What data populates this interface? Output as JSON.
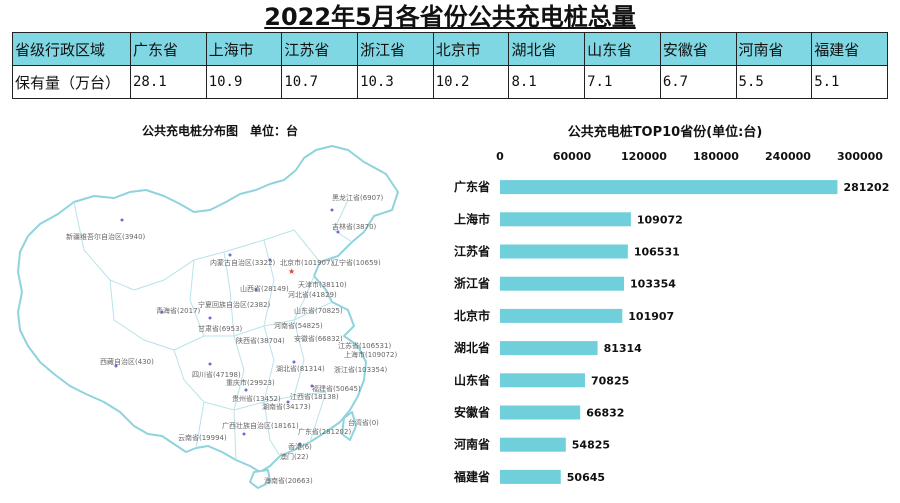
{
  "page": {
    "title": "2022年5月各省份公共充电桩总量"
  },
  "table": {
    "header_label": "省级行政区域",
    "value_label": "保有量（万台）",
    "provinces": [
      "广东省",
      "上海市",
      "江苏省",
      "浙江省",
      "北京市",
      "湖北省",
      "山东省",
      "安徽省",
      "河南省",
      "福建省"
    ],
    "values": [
      "28.1",
      "10.9",
      "10.7",
      "10.3",
      "10.2",
      "8.1",
      "7.1",
      "6.7",
      "5.5",
      "5.1"
    ]
  },
  "map": {
    "title": "公共充电桩分布图　单位：台",
    "labels": [
      {
        "text": "黑龙江省(6907)"
      },
      {
        "text": "吉林省(3870)"
      },
      {
        "text": "新疆维吾尔自治区(3940)"
      },
      {
        "text": "内蒙古自治区(3322)"
      },
      {
        "text": "北京市(101907)"
      },
      {
        "text": "辽宁省(10659)"
      },
      {
        "text": "天津市(38110)"
      },
      {
        "text": "河北省(41829)"
      },
      {
        "text": "山西省(28149)"
      },
      {
        "text": "宁夏回族自治区(2382)"
      },
      {
        "text": "青海省(2017)"
      },
      {
        "text": "甘肃省(6953)"
      },
      {
        "text": "山东省(70825)"
      },
      {
        "text": "河南省(54825)"
      },
      {
        "text": "陕西省(38704)"
      },
      {
        "text": "安徽省(66832)"
      },
      {
        "text": "江苏省(106531)"
      },
      {
        "text": "上海市(109072)"
      },
      {
        "text": "西藏自治区(430)"
      },
      {
        "text": "湖北省(81314)"
      },
      {
        "text": "浙江省(103354)"
      },
      {
        "text": "四川省(47198)"
      },
      {
        "text": "重庆市(29923)"
      },
      {
        "text": "福建省(50645)"
      },
      {
        "text": "贵州省(13452)"
      },
      {
        "text": "江西省(18138)"
      },
      {
        "text": "湖南省(34173)"
      },
      {
        "text": "台湾省(0)"
      },
      {
        "text": "云南省(19994)"
      },
      {
        "text": "广西壮族自治区(18161)"
      },
      {
        "text": "广东省(281202)"
      },
      {
        "text": "香港(6)"
      },
      {
        "text": "澳门(22)"
      },
      {
        "text": "海南省(20663)"
      }
    ]
  },
  "chart_data": {
    "type": "bar",
    "orientation": "horizontal",
    "title": "公共充电桩TOP10省份(单位:台)",
    "categories": [
      "广东省",
      "上海市",
      "江苏省",
      "浙江省",
      "北京市",
      "湖北省",
      "山东省",
      "安徽省",
      "河南省",
      "福建省"
    ],
    "values": [
      281202,
      109072,
      106531,
      103354,
      101907,
      81314,
      70825,
      66832,
      54825,
      50645
    ],
    "value_labels": [
      "281202",
      "109072",
      "106531",
      "103354",
      "101907",
      "81314",
      "70825",
      "66832",
      "54825",
      "50645"
    ],
    "xlim": [
      0,
      300000
    ],
    "xticks": [
      "0",
      "60000",
      "120000",
      "180000",
      "240000",
      "300000"
    ],
    "xtick_values": [
      0,
      60000,
      120000,
      180000,
      240000,
      300000
    ],
    "axis_position": "top",
    "grid": false,
    "legend": "none",
    "bar_color": "#6fd0dc"
  },
  "colors": {
    "header_bg": "#7fd7e3",
    "map_border": "#8fd3dd",
    "map_fill": "#ffffff",
    "marker": "#6b6bd6"
  }
}
